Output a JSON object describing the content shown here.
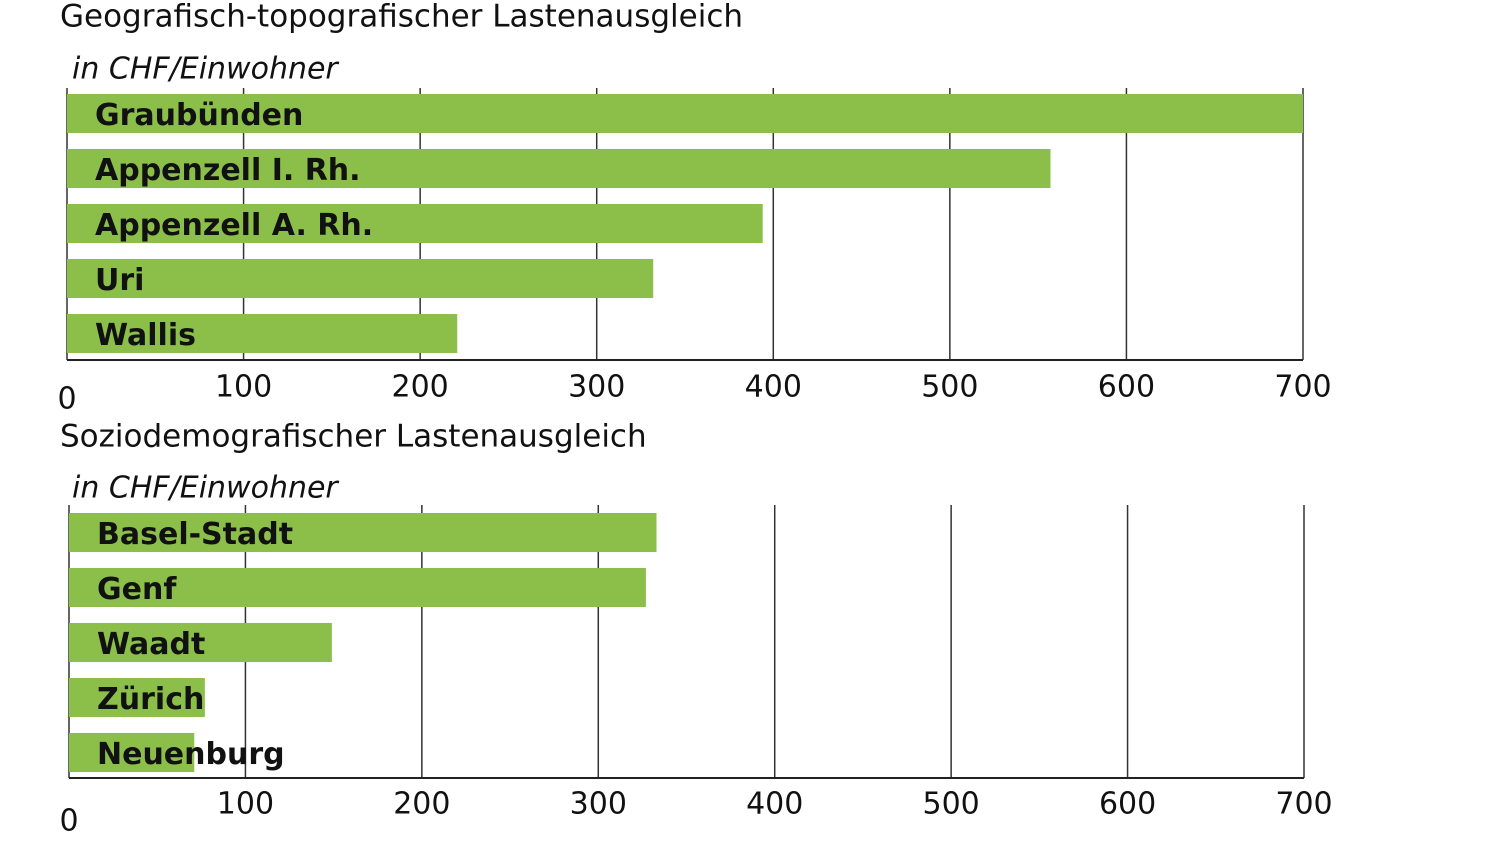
{
  "chart_data": [
    {
      "type": "bar",
      "orientation": "horizontal",
      "title": "Geografisch-topografischer Lastenausgleich",
      "subtitle": "in CHF/Einwohner",
      "categories": [
        "Graubünden",
        "Appenzell I. Rh.",
        "Appenzell A. Rh.",
        "Uri",
        "Wallis"
      ],
      "values": [
        700,
        557,
        394,
        332,
        221
      ],
      "color": "#8bbf4a",
      "xlim": [
        0,
        700
      ],
      "xticks": [
        0,
        100,
        200,
        300,
        400,
        500,
        600,
        700
      ],
      "grid": true
    },
    {
      "type": "bar",
      "orientation": "horizontal",
      "title": "Soziodemografischer Lastenausgleich",
      "subtitle": "in CHF/Einwohner",
      "categories": [
        "Basel-Stadt",
        "Genf",
        "Waadt",
        "Zürich",
        "Neuenburg"
      ],
      "values": [
        333,
        327,
        149,
        77,
        71
      ],
      "color": "#8bbf4a",
      "xlim": [
        0,
        700
      ],
      "xticks": [
        0,
        100,
        200,
        300,
        400,
        500,
        600,
        700
      ],
      "grid": true
    }
  ]
}
